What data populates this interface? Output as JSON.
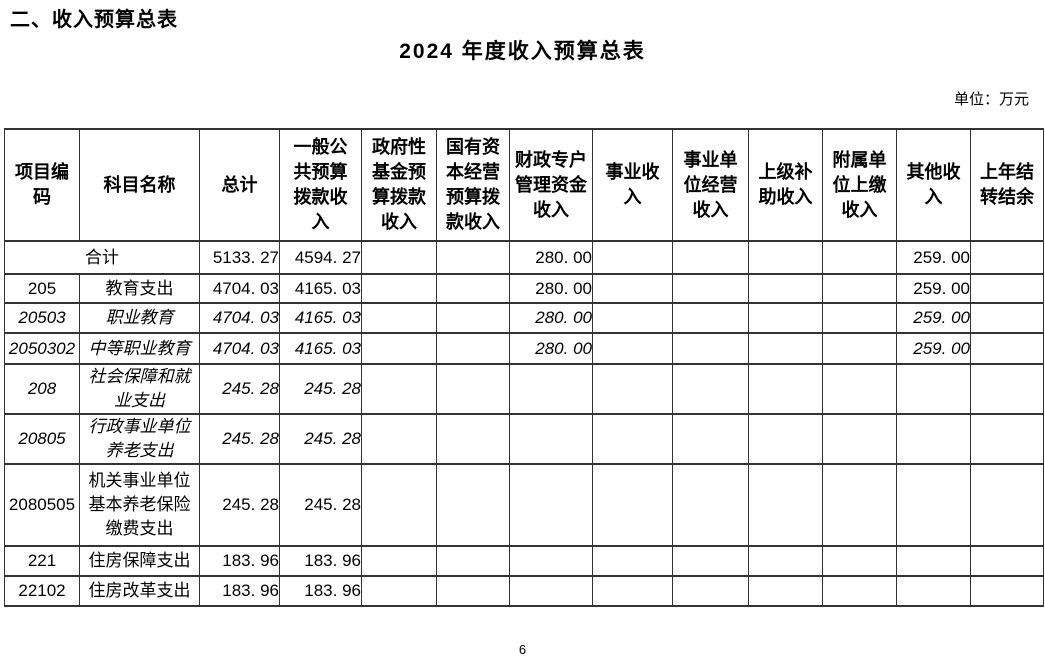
{
  "page": {
    "section_heading": "二、收入预算总表",
    "table_title": "2024 年度收入预算总表",
    "unit_label": "单位：万元",
    "page_number": "6"
  },
  "table": {
    "columns": [
      "项目编\n码",
      "科目名称",
      "总计",
      "一般公\n共预算\n拨款收\n入",
      "政府性\n基金预\n算拨款\n收入",
      "国有资\n本经营\n预算拨\n款收入",
      "财政专户\n管理资金\n收入",
      "事业收\n入",
      "事业单\n位经营\n收入",
      "上级补\n助收入",
      "附属单\n位上缴\n收入",
      "其他收\n入",
      "上年结\n转结余"
    ],
    "rows": [
      {
        "code": "",
        "name": "合计",
        "merged": true,
        "italic": false,
        "values": [
          "5133. 27",
          "4594. 27",
          "",
          "",
          "280. 00",
          "",
          "",
          "",
          "",
          "259. 00",
          ""
        ]
      },
      {
        "code": "205",
        "name": "教育支出",
        "merged": false,
        "italic": false,
        "values": [
          "4704. 03",
          "4165. 03",
          "",
          "",
          "280. 00",
          "",
          "",
          "",
          "",
          "259. 00",
          ""
        ]
      },
      {
        "code": "20503",
        "name": "职业教育",
        "merged": false,
        "italic": true,
        "values": [
          "4704. 03",
          "4165. 03",
          "",
          "",
          "280. 00",
          "",
          "",
          "",
          "",
          "259. 00",
          ""
        ]
      },
      {
        "code": "2050302",
        "name": "中等职业教育",
        "merged": false,
        "italic": true,
        "values": [
          "4704. 03",
          "4165. 03",
          "",
          "",
          "280. 00",
          "",
          "",
          "",
          "",
          "259. 00",
          ""
        ]
      },
      {
        "code": "208",
        "name": "社会保障和就\n业支出",
        "merged": false,
        "italic": true,
        "values": [
          "245. 28",
          "245. 28",
          "",
          "",
          "",
          "",
          "",
          "",
          "",
          "",
          ""
        ]
      },
      {
        "code": "20805",
        "name": "行政事业单位\n养老支出",
        "merged": false,
        "italic": true,
        "values": [
          "245. 28",
          "245. 28",
          "",
          "",
          "",
          "",
          "",
          "",
          "",
          "",
          ""
        ]
      },
      {
        "code": "2080505",
        "name": "机关事业单位\n基本养老保险\n缴费支出",
        "merged": false,
        "italic": false,
        "values": [
          "245. 28",
          "245. 28",
          "",
          "",
          "",
          "",
          "",
          "",
          "",
          "",
          ""
        ]
      },
      {
        "code": "221",
        "name": "住房保障支出",
        "merged": false,
        "italic": false,
        "values": [
          "183. 96",
          "183. 96",
          "",
          "",
          "",
          "",
          "",
          "",
          "",
          "",
          ""
        ]
      },
      {
        "code": "22102",
        "name": "住房改革支出",
        "merged": false,
        "italic": false,
        "values": [
          "183. 96",
          "183. 96",
          "",
          "",
          "",
          "",
          "",
          "",
          "",
          "",
          ""
        ]
      }
    ]
  }
}
